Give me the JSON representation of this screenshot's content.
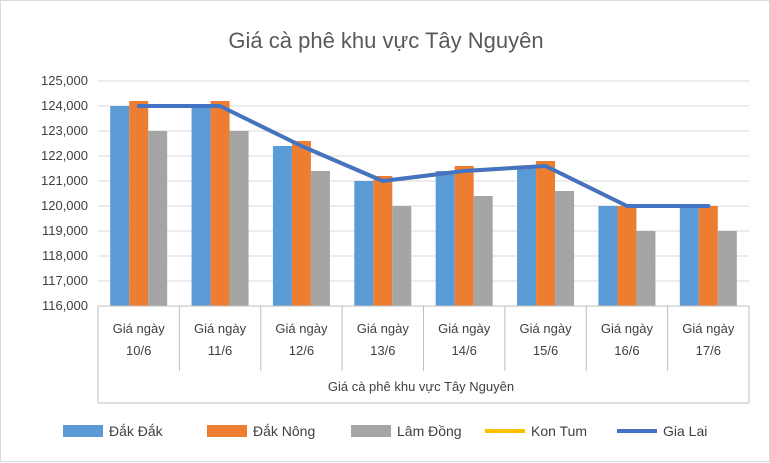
{
  "chart_data": {
    "type": "bar",
    "title": "Giá cà phê khu vực Tây Nguyên",
    "xlabel": "Giá cà phê khu vực Tây Nguyên",
    "ylabel": "",
    "ylim": [
      116000,
      125000
    ],
    "ytick_step": 1000,
    "yticks": [
      "116,000",
      "117,000",
      "118,000",
      "119,000",
      "120,000",
      "121,000",
      "122,000",
      "123,000",
      "124,000",
      "125,000"
    ],
    "categories": [
      [
        "Giá ngày",
        "10/6"
      ],
      [
        "Giá ngày",
        "11/6"
      ],
      [
        "Giá ngày",
        "12/6"
      ],
      [
        "Giá ngày",
        "13/6"
      ],
      [
        "Giá ngày",
        "14/6"
      ],
      [
        "Giá ngày",
        "15/6"
      ],
      [
        "Giá ngày",
        "16/6"
      ],
      [
        "Giá ngày",
        "17/6"
      ]
    ],
    "series": [
      {
        "name": "Đắk Đắk",
        "kind": "bar",
        "color": "#5b9bd5",
        "values": [
          124000,
          124000,
          122400,
          121000,
          121400,
          121600,
          120000,
          120000
        ]
      },
      {
        "name": "Đắk Nông",
        "kind": "bar",
        "color": "#ed7d31",
        "values": [
          124200,
          124200,
          122600,
          121200,
          121600,
          121800,
          120000,
          120000
        ]
      },
      {
        "name": "Lâm Đồng",
        "kind": "bar",
        "color": "#a5a5a5",
        "values": [
          123000,
          123000,
          121400,
          120000,
          120400,
          120600,
          119000,
          119000
        ]
      },
      {
        "name": "Kon Tum",
        "kind": "line",
        "color": "#ffc000",
        "values": [
          124000,
          124000,
          122400,
          121000,
          121400,
          121600,
          120000,
          120000
        ]
      },
      {
        "name": "Gia Lai",
        "kind": "line",
        "color": "#4472c4",
        "values": [
          124000,
          124000,
          122400,
          121000,
          121400,
          121600,
          120000,
          120000
        ]
      }
    ],
    "legend_position": "bottom",
    "grid": true
  }
}
